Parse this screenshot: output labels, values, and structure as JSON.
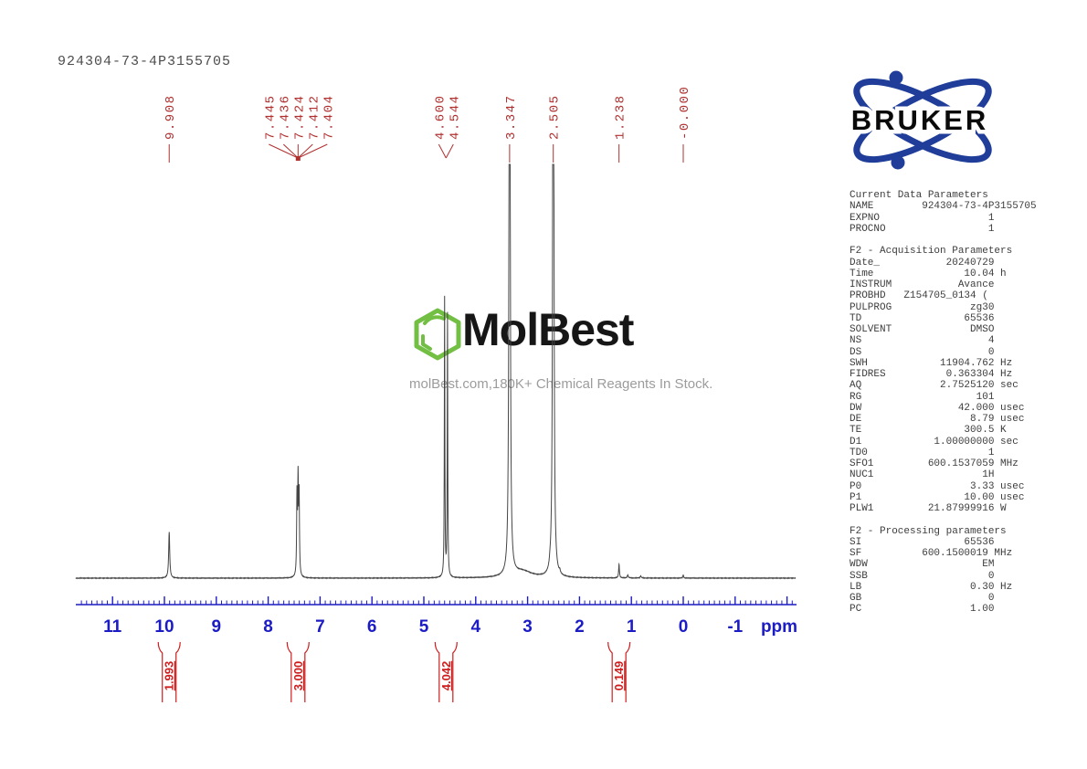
{
  "title": "924304-73-4P3155705",
  "logo": {
    "text": "BRUKER",
    "orbit_color": "#1f3d99",
    "text_color": "#0a0a0a"
  },
  "watermark": {
    "brand": "MolBest",
    "tagline": "molBest.com,180K+ Chemical Reagents In Stock.",
    "hexagon_color": "#72bf44",
    "text_color": "#161616",
    "tagline_color": "#9c9c9c"
  },
  "colors": {
    "peak_label": "#b03030",
    "integral": "#cf1d1d",
    "axis": "#1c1cc4",
    "spectrum": "#454545",
    "title": "#4d4d4d",
    "params": "#3d3d3d"
  },
  "chart_data": {
    "type": "line",
    "kind": "1H NMR spectrum",
    "title": "924304-73-4P3155705",
    "xlabel": "ppm",
    "x_axis_range_ppm": [
      11.65,
      -2.1
    ],
    "x_ticks": [
      11,
      10,
      9,
      8,
      7,
      6,
      5,
      4,
      3,
      2,
      1,
      0,
      -1
    ],
    "minor_tick_step_ppm": 0.1,
    "grid": false,
    "peak_label_groups": [
      {
        "labels": [
          "9.908"
        ],
        "ppms": [
          9.908
        ]
      },
      {
        "labels": [
          "7.445",
          "7.436",
          "7.424",
          "7.412",
          "7.404"
        ],
        "ppms": [
          7.445,
          7.436,
          7.424,
          7.412,
          7.404
        ]
      },
      {
        "labels": [
          "4.600",
          "4.544"
        ],
        "ppms": [
          4.6,
          4.544
        ]
      },
      {
        "labels": [
          "3.347"
        ],
        "ppms": [
          3.347
        ]
      },
      {
        "labels": [
          "2.505"
        ],
        "ppms": [
          2.505
        ]
      },
      {
        "labels": [
          "1.238"
        ],
        "ppms": [
          1.238
        ]
      },
      {
        "labels": [
          "-0.000"
        ],
        "ppms": [
          0.0
        ]
      }
    ],
    "curve_peaks": [
      {
        "ppm": 9.908,
        "height": 0.112,
        "width": 0.012
      },
      {
        "ppm": 7.445,
        "height": 0.19,
        "width": 0.008
      },
      {
        "ppm": 7.424,
        "height": 0.22,
        "width": 0.008
      },
      {
        "ppm": 7.404,
        "height": 0.19,
        "width": 0.008
      },
      {
        "ppm": 4.6,
        "height": 0.675,
        "width": 0.006
      },
      {
        "ppm": 4.544,
        "height": 0.635,
        "width": 0.006
      },
      {
        "ppm": 3.347,
        "height": 2.6,
        "width": 0.01
      },
      {
        "ppm": 3.1,
        "height": 0.016,
        "width": 0.22
      },
      {
        "ppm": 2.57,
        "height": 0.007,
        "width": 0.01
      },
      {
        "ppm": 2.505,
        "height": 2.6,
        "width": 0.01
      },
      {
        "ppm": 2.38,
        "height": 0.007,
        "width": 0.01
      },
      {
        "ppm": 1.238,
        "height": 0.033,
        "width": 0.009
      },
      {
        "ppm": 1.07,
        "height": 0.007,
        "width": 0.012
      },
      {
        "ppm": 0.82,
        "height": 0.005,
        "width": 0.012
      },
      {
        "ppm": 0.0,
        "height": 0.008,
        "width": 0.008
      }
    ],
    "integrals": [
      {
        "value": "1.993",
        "ppm": 9.908
      },
      {
        "value": "3.000",
        "ppm": 7.424
      },
      {
        "value": "4.042",
        "ppm": 4.572
      },
      {
        "value": "0.149",
        "ppm": 1.238
      }
    ]
  },
  "parameters": {
    "lines": [
      "Current Data Parameters",
      "NAME        924304-73-4P3155705",
      "EXPNO                  1",
      "PROCNO                 1",
      "",
      "F2 - Acquisition Parameters",
      "Date_           20240729",
      "Time               10.04 h",
      "INSTRUM           Avance",
      "PROBHD   Z154705_0134 (",
      "PULPROG             zg30",
      "TD                 65536",
      "SOLVENT             DMSO",
      "NS                     4",
      "DS                     0",
      "SWH            11904.762 Hz",
      "FIDRES          0.363304 Hz",
      "AQ             2.7525120 sec",
      "RG                   101",
      "DW                42.000 usec",
      "DE                  8.79 usec",
      "TE                 300.5 K",
      "D1            1.00000000 sec",
      "TD0                    1",
      "SFO1         600.1537059 MHz",
      "NUC1                  1H",
      "P0                  3.33 usec",
      "P1                 10.00 usec",
      "PLW1         21.87999916 W",
      "",
      "F2 - Processing parameters",
      "SI                 65536",
      "SF          600.1500019 MHz",
      "WDW                   EM",
      "SSB                    0",
      "LB                  0.30 Hz",
      "GB                     0",
      "PC                  1.00"
    ]
  }
}
